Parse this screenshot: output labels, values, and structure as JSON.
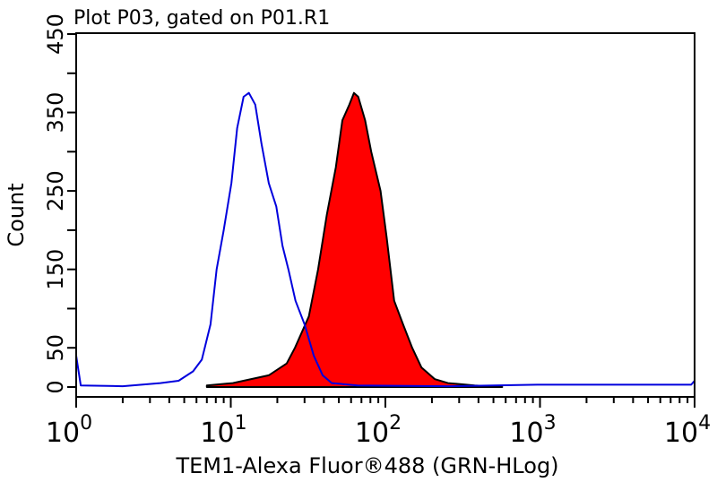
{
  "chart_data": {
    "type": "area",
    "title": "Plot P03, gated on P01.R1",
    "xlabel": "TEM1-Alexa Fluor®488 (GRN-HLog)",
    "ylabel": "Count",
    "xscale": "log",
    "xlim": [
      1,
      10000
    ],
    "ylim": [
      0,
      450
    ],
    "xticks": [
      {
        "base": "10",
        "exp": "0",
        "value": 1
      },
      {
        "base": "10",
        "exp": "1",
        "value": 10
      },
      {
        "base": "10",
        "exp": "2",
        "value": 100
      },
      {
        "base": "10",
        "exp": "3",
        "value": 1000
      },
      {
        "base": "10",
        "exp": "4",
        "value": 10000
      }
    ],
    "yticks": [
      "0",
      "50",
      "150",
      "250",
      "350",
      "450"
    ],
    "grid": false,
    "series": [
      {
        "color": "#0000dd",
        "fill": "none",
        "points": [
          [
            1,
            40
          ],
          [
            1.07,
            2
          ],
          [
            2,
            1
          ],
          [
            3.5,
            5
          ],
          [
            4.6,
            8
          ],
          [
            5.7,
            20
          ],
          [
            6.5,
            35
          ],
          [
            7.4,
            80
          ],
          [
            8.1,
            150
          ],
          [
            9,
            200
          ],
          [
            10.1,
            260
          ],
          [
            11,
            330
          ],
          [
            12.1,
            370
          ],
          [
            13.1,
            375
          ],
          [
            14.4,
            360
          ],
          [
            15.8,
            310
          ],
          [
            17.6,
            260
          ],
          [
            19.7,
            230
          ],
          [
            21.6,
            180
          ],
          [
            23.6,
            150
          ],
          [
            26.2,
            110
          ],
          [
            30,
            80
          ],
          [
            34.4,
            40
          ],
          [
            39.3,
            15
          ],
          [
            45,
            5
          ],
          [
            66,
            2
          ],
          [
            254,
            1
          ],
          [
            960,
            3
          ],
          [
            3600,
            3
          ],
          [
            9500,
            3
          ],
          [
            10000,
            8
          ]
        ]
      },
      {
        "color": "#000000",
        "fill": "#ff0000",
        "points": [
          [
            7,
            2
          ],
          [
            10.3,
            5
          ],
          [
            17.6,
            15
          ],
          [
            23,
            30
          ],
          [
            26,
            50
          ],
          [
            32,
            90
          ],
          [
            36.7,
            150
          ],
          [
            41.8,
            220
          ],
          [
            47.8,
            280
          ],
          [
            52.7,
            340
          ],
          [
            58.5,
            360
          ],
          [
            62.6,
            375
          ],
          [
            66.7,
            370
          ],
          [
            74,
            340
          ],
          [
            81,
            300
          ],
          [
            93,
            250
          ],
          [
            102,
            190
          ],
          [
            114,
            110
          ],
          [
            130,
            80
          ],
          [
            149,
            50
          ],
          [
            171,
            25
          ],
          [
            209,
            10
          ],
          [
            254,
            5
          ],
          [
            378,
            2
          ],
          [
            570,
            0
          ]
        ]
      }
    ]
  }
}
